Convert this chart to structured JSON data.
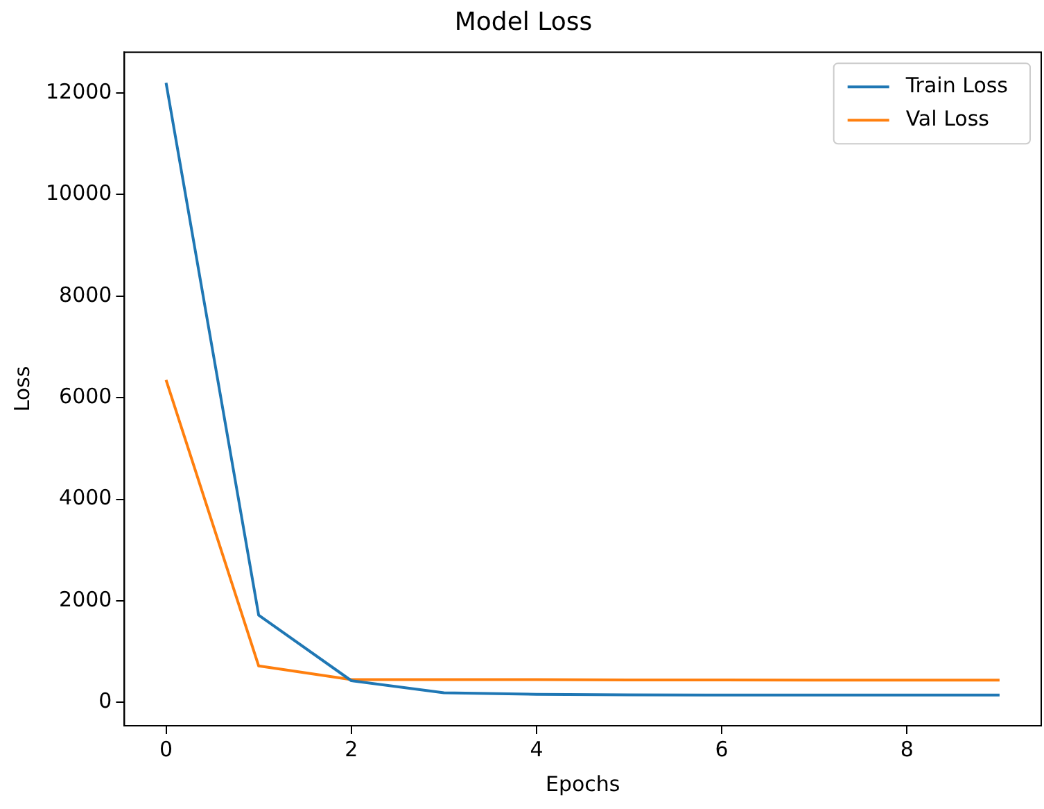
{
  "chart_data": {
    "type": "line",
    "title": "Model Loss",
    "xlabel": "Epochs",
    "ylabel": "Loss",
    "x": [
      0,
      1,
      2,
      3,
      4,
      5,
      6,
      7,
      8,
      9
    ],
    "series": [
      {
        "name": "Train Loss",
        "color": "#1f77b4",
        "values": [
          12200,
          1720,
          430,
          190,
          160,
          150,
          145,
          145,
          145,
          145
        ]
      },
      {
        "name": "Val Loss",
        "color": "#ff7f0e",
        "values": [
          6350,
          720,
          450,
          450,
          450,
          445,
          445,
          440,
          440,
          440
        ]
      }
    ],
    "xlim": [
      -0.45,
      9.45
    ],
    "ylim": [
      -458,
      12803
    ],
    "xticks": [
      0,
      2,
      4,
      6,
      8
    ],
    "yticks": [
      0,
      2000,
      4000,
      6000,
      8000,
      10000,
      12000
    ],
    "grid": false,
    "legend": "top right",
    "marker": "none",
    "line_style": "solid"
  }
}
